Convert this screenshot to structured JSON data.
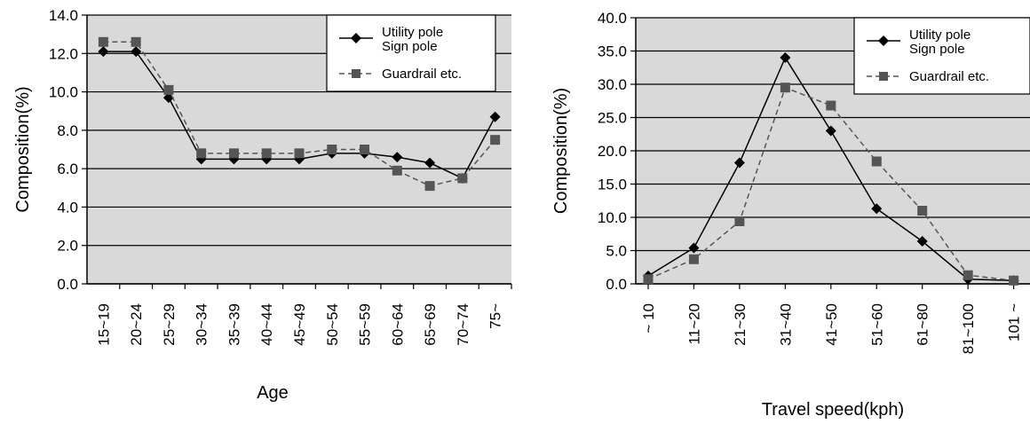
{
  "chart_data": [
    {
      "type": "line",
      "xlabel": "Age",
      "ylabel": "Composition(%)",
      "ylim": [
        0,
        14
      ],
      "y_ticks": [
        "0.0",
        "2.0",
        "4.0",
        "6.0",
        "8.0",
        "10.0",
        "12.0",
        "14.0"
      ],
      "categories": [
        "15~19",
        "20~24",
        "25~29",
        "30~34",
        "35~39",
        "40~44",
        "45~49",
        "50~54",
        "55~59",
        "60~64",
        "65~69",
        "70~74",
        "75~"
      ],
      "grid": true,
      "legend_position": "top-right",
      "series": [
        {
          "name": "Utility pole Sign pole",
          "legend_lines": [
            "Utility pole",
            "Sign pole"
          ],
          "marker": "diamond",
          "line_style": "solid",
          "color": "#000000",
          "values": [
            12.1,
            12.1,
            9.7,
            6.5,
            6.5,
            6.5,
            6.5,
            6.8,
            6.8,
            6.6,
            6.3,
            5.5,
            8.7
          ]
        },
        {
          "name": "Guardrail etc.",
          "legend_lines": [
            "Guardrail etc."
          ],
          "marker": "square",
          "line_style": "dashed",
          "color": "#555555",
          "values": [
            12.6,
            12.6,
            10.1,
            6.8,
            6.8,
            6.8,
            6.8,
            7.0,
            7.0,
            5.9,
            5.1,
            5.5,
            7.5
          ]
        }
      ]
    },
    {
      "type": "line",
      "xlabel": "Travel speed(kph)",
      "ylabel": "Composition(%)",
      "ylim": [
        0,
        40
      ],
      "y_ticks": [
        "0.0",
        "5.0",
        "10.0",
        "15.0",
        "20.0",
        "25.0",
        "30.0",
        "35.0",
        "40.0"
      ],
      "categories": [
        "~ 10",
        "11~20",
        "21~30",
        "31~40",
        "41~50",
        "51~60",
        "61~80",
        "81~100",
        "101 ~"
      ],
      "grid": true,
      "legend_position": "top-right",
      "series": [
        {
          "name": "Utility pole Sign pole",
          "legend_lines": [
            "Utility pole",
            "Sign pole"
          ],
          "marker": "diamond",
          "line_style": "solid",
          "color": "#000000",
          "values": [
            1.2,
            5.4,
            18.2,
            34.0,
            23.0,
            11.3,
            6.4,
            0.7,
            0.5
          ]
        },
        {
          "name": "Guardrail etc.",
          "legend_lines": [
            "Guardrail etc."
          ],
          "marker": "square",
          "line_style": "dashed",
          "color": "#555555",
          "values": [
            0.7,
            3.7,
            9.4,
            29.5,
            26.8,
            18.4,
            11.0,
            1.3,
            0.5
          ]
        }
      ]
    }
  ]
}
